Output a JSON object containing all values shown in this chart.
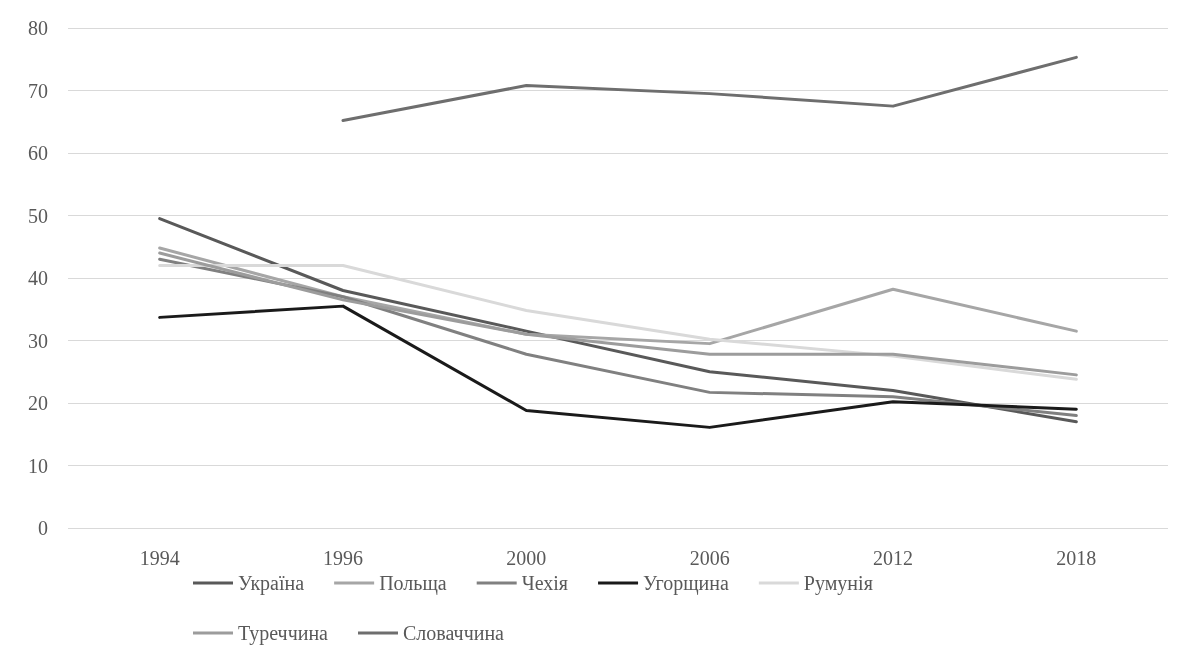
{
  "chart_data": {
    "type": "line",
    "categories": [
      "1994",
      "1996",
      "2000",
      "2006",
      "2012",
      "2018"
    ],
    "series": [
      {
        "name": "Україна",
        "color": "#595959",
        "values": [
          49.5,
          38,
          31.5,
          25,
          22,
          17
        ]
      },
      {
        "name": "Польща",
        "color": "#a6a6a6",
        "values": [
          44.8,
          37,
          31,
          29.5,
          38.2,
          31.5
        ]
      },
      {
        "name": "Чехія",
        "color": "#808080",
        "values": [
          43,
          37,
          27.8,
          21.7,
          21,
          18
        ]
      },
      {
        "name": "Угорщина",
        "color": "#1a1a1a",
        "values": [
          33.7,
          35.5,
          18.8,
          16.1,
          20.2,
          19
        ]
      },
      {
        "name": "Румунія",
        "color": "#d9d9d9",
        "values": [
          42,
          42,
          34.8,
          30.2,
          27.5,
          23.8
        ]
      },
      {
        "name": "Туреччина",
        "color": "#9c9c9c",
        "values": [
          44,
          36.5,
          31,
          27.8,
          27.8,
          24.5
        ]
      },
      {
        "name": "Словаччина",
        "color": "#6e6e6e",
        "values": [
          null,
          65.2,
          70.8,
          69.5,
          67.5,
          75.3
        ]
      }
    ],
    "ylim": [
      0,
      80
    ],
    "yticks": [
      0,
      10,
      20,
      30,
      40,
      50,
      60,
      70,
      80
    ],
    "grid": "y",
    "legend": "bottom",
    "marker": "none",
    "line_style": "solid"
  }
}
